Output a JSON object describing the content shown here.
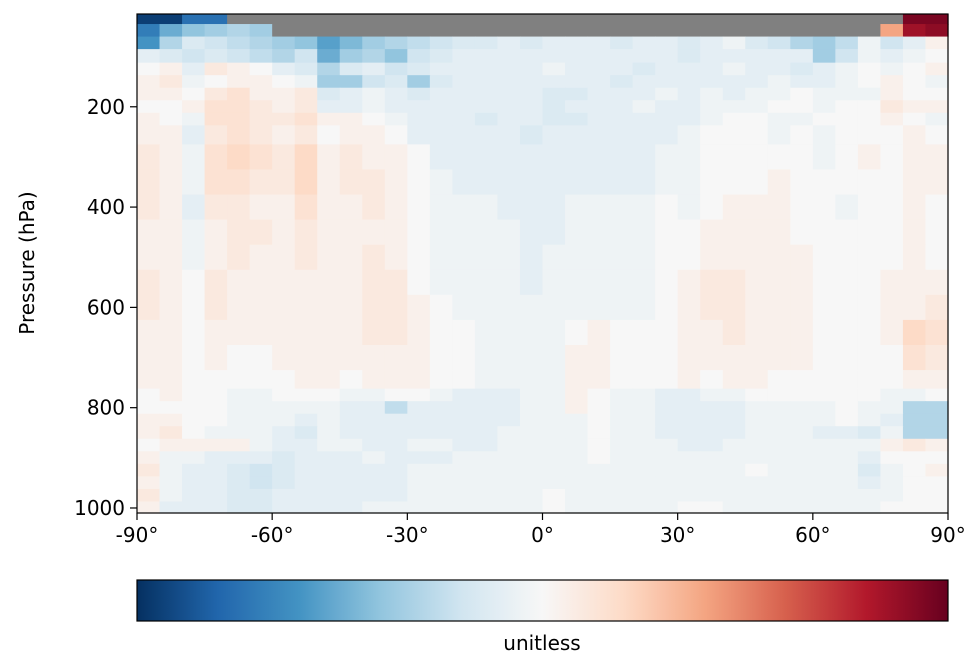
{
  "chart_data": {
    "type": "heatmap",
    "title": "",
    "xlabel": "",
    "ylabel": "Pressure (hPa)",
    "colorbar_label": "unitless",
    "colormap": "RdBu_r",
    "colormap_stops": [
      "#053061",
      "#2166ac",
      "#4393c3",
      "#92c5de",
      "#d1e5f0",
      "#f7f7f7",
      "#fddbc7",
      "#f4a582",
      "#d6604d",
      "#b2182b",
      "#67001f"
    ],
    "missing_color": "#808080",
    "clim": [
      -1,
      1
    ],
    "xlim": [
      -90,
      90
    ],
    "ylim": [
      1010,
      15
    ],
    "x_ticks": [
      -90,
      -60,
      -30,
      0,
      30,
      60,
      90
    ],
    "x_tick_labels": [
      "-90°",
      "-60°",
      "-30°",
      "0°",
      "30°",
      "60°",
      "90°"
    ],
    "y_ticks": [
      200,
      400,
      600,
      800,
      1000
    ],
    "y_tick_labels": [
      "200",
      "400",
      "600",
      "800",
      "1000"
    ],
    "lat_step": 5,
    "lat_start": -90,
    "levels": [
      20,
      50,
      70,
      100,
      125,
      150,
      175,
      200,
      225,
      250,
      300,
      350,
      400,
      450,
      500,
      550,
      600,
      650,
      700,
      750,
      775,
      800,
      825,
      850,
      875,
      900,
      925,
      950,
      975,
      1000
    ],
    "level_bounds": [
      15,
      35,
      60,
      85,
      112,
      137,
      162,
      187,
      212,
      237,
      275,
      325,
      375,
      425,
      475,
      525,
      575,
      625,
      675,
      725,
      762,
      787,
      812,
      837,
      862,
      887,
      912,
      937,
      962,
      987,
      1010
    ],
    "surface_level_by_lat": [
      20,
      20,
      20,
      20,
      35,
      50,
      60,
      60,
      60,
      60,
      60,
      60,
      60,
      60,
      60,
      60,
      60,
      60,
      60,
      60,
      60,
      60,
      60,
      60,
      60,
      60,
      60,
      60,
      60,
      60,
      60,
      60,
      60,
      35,
      20,
      20
    ],
    "values": [
      [
        -0.95,
        -0.95,
        -0.75,
        -0.75,
        -0.45,
        -0.4,
        -0.35,
        -0.55,
        -0.5,
        -0.45,
        -0.25,
        -0.35,
        -0.3,
        -0.1,
        -0.2,
        -0.1,
        0.05,
        -0.2,
        0.1,
        -0.05,
        -0.3,
        -0.1,
        -0.05,
        -0.15,
        0.1,
        0.15,
        0.35,
        0.1,
        -0.05,
        -0.2,
        -0.15,
        -0.1,
        0.3,
        0.95,
        0.95,
        0.95
      ],
      [
        -0.7,
        -0.5,
        -0.4,
        -0.35,
        -0.3,
        -0.35,
        -0.3,
        -0.5,
        -0.45,
        -0.4,
        -0.3,
        -0.2,
        -0.35,
        -0.25,
        -0.2,
        -0.15,
        -0.1,
        -0.2,
        -0.1,
        -0.15,
        -0.2,
        -0.15,
        -0.1,
        -0.15,
        -0.1,
        0.05,
        0.05,
        -0.1,
        -0.15,
        -0.3,
        -0.25,
        -0.2,
        0.1,
        0.4,
        0.85,
        0.9
      ],
      [
        -0.6,
        -0.3,
        -0.15,
        -0.2,
        -0.25,
        -0.3,
        -0.35,
        -0.4,
        -0.55,
        -0.45,
        -0.35,
        -0.3,
        -0.25,
        -0.2,
        -0.15,
        -0.15,
        -0.1,
        -0.15,
        -0.1,
        -0.1,
        -0.1,
        -0.15,
        -0.1,
        -0.1,
        -0.15,
        -0.1,
        -0.05,
        -0.15,
        -0.2,
        -0.3,
        -0.35,
        -0.25,
        -0.05,
        -0.2,
        -0.1,
        0.05
      ],
      [
        -0.1,
        -0.15,
        -0.2,
        -0.15,
        -0.2,
        -0.25,
        -0.3,
        -0.2,
        -0.5,
        -0.35,
        -0.3,
        -0.4,
        -0.2,
        -0.15,
        -0.1,
        -0.1,
        -0.1,
        -0.1,
        -0.1,
        -0.1,
        -0.1,
        -0.1,
        -0.1,
        -0.1,
        -0.15,
        -0.1,
        -0.1,
        -0.1,
        -0.1,
        -0.1,
        -0.35,
        -0.2,
        -0.05,
        -0.1,
        -0.05,
        0
      ],
      [
        0,
        0.05,
        -0.1,
        0.1,
        0.05,
        0,
        -0.1,
        -0.15,
        -0.3,
        -0.15,
        -0.1,
        -0.2,
        -0.15,
        -0.1,
        -0.1,
        -0.1,
        -0.1,
        -0.1,
        -0.05,
        -0.1,
        -0.1,
        -0.1,
        -0.15,
        -0.1,
        -0.1,
        -0.1,
        -0.05,
        -0.1,
        -0.1,
        -0.15,
        -0.1,
        -0.05,
        0,
        -0.05,
        0,
        0.05
      ],
      [
        0.05,
        0.1,
        -0.05,
        0,
        0.05,
        0.05,
        0,
        -0.05,
        -0.35,
        -0.35,
        -0.2,
        -0.15,
        -0.35,
        -0.15,
        -0.1,
        -0.1,
        -0.1,
        -0.1,
        -0.1,
        -0.1,
        -0.1,
        -0.15,
        -0.1,
        -0.1,
        -0.1,
        -0.1,
        -0.1,
        -0.1,
        -0.05,
        -0.1,
        -0.1,
        -0.05,
        0,
        0.05,
        0,
        -0.05
      ],
      [
        0.05,
        0.05,
        0,
        0.1,
        0.15,
        0.05,
        0.05,
        0.1,
        -0.15,
        -0.1,
        -0.05,
        -0.1,
        -0.15,
        -0.1,
        -0.1,
        -0.1,
        -0.1,
        -0.1,
        -0.15,
        -0.15,
        -0.1,
        -0.1,
        -0.1,
        -0.05,
        -0.1,
        -0.05,
        -0.1,
        -0.05,
        -0.05,
        0,
        -0.05,
        -0.05,
        -0.05,
        0.05,
        0,
        0
      ],
      [
        0,
        0,
        0.05,
        0.15,
        0.15,
        0.1,
        0.05,
        0.1,
        -0.1,
        -0.1,
        -0.05,
        -0.1,
        -0.1,
        -0.1,
        -0.1,
        -0.1,
        -0.1,
        -0.1,
        -0.15,
        -0.1,
        -0.1,
        -0.1,
        -0.05,
        -0.1,
        -0.1,
        -0.05,
        -0.05,
        -0.05,
        0,
        0,
        -0.05,
        0,
        0,
        0.1,
        0.05,
        0.05
      ],
      [
        0.05,
        0,
        -0.05,
        0.15,
        0.15,
        0.1,
        0.1,
        0.15,
        0.05,
        0.05,
        0,
        -0.05,
        -0.1,
        -0.1,
        -0.1,
        -0.15,
        -0.1,
        -0.1,
        -0.15,
        -0.15,
        -0.1,
        -0.1,
        -0.1,
        -0.1,
        -0.1,
        -0.05,
        0,
        0,
        -0.05,
        -0.05,
        0,
        0,
        0,
        0.05,
        0,
        -0.05
      ],
      [
        0.05,
        0.05,
        -0.1,
        0.1,
        0.15,
        0.1,
        0.05,
        0.1,
        0,
        0.05,
        0.05,
        0,
        -0.1,
        -0.1,
        -0.1,
        -0.1,
        -0.1,
        -0.15,
        -0.1,
        -0.1,
        -0.1,
        -0.1,
        -0.1,
        -0.1,
        -0.05,
        0,
        0,
        0,
        -0.05,
        0,
        -0.05,
        0,
        0,
        0,
        0.05,
        0
      ],
      [
        0.1,
        0.05,
        -0.05,
        0.15,
        0.2,
        0.15,
        0.1,
        0.2,
        0.05,
        0.1,
        0.05,
        0.05,
        0,
        -0.1,
        -0.1,
        -0.1,
        -0.1,
        -0.1,
        -0.1,
        -0.1,
        -0.1,
        -0.1,
        -0.1,
        -0.05,
        -0.05,
        0,
        0,
        0,
        0,
        0,
        -0.05,
        0,
        0.05,
        0,
        0.05,
        0.05
      ],
      [
        0.1,
        0.05,
        -0.05,
        0.15,
        0.15,
        0.1,
        0.1,
        0.2,
        0.05,
        0.1,
        0.1,
        0.05,
        0,
        -0.05,
        -0.1,
        -0.1,
        -0.1,
        -0.1,
        -0.1,
        -0.1,
        -0.1,
        -0.1,
        -0.1,
        -0.05,
        -0.05,
        0,
        0,
        0,
        0.05,
        0,
        0,
        0,
        0,
        0,
        0.05,
        0.05
      ],
      [
        0.1,
        0.05,
        -0.1,
        0.1,
        0.1,
        0.05,
        0.05,
        0.15,
        0.05,
        0.05,
        0.1,
        0.05,
        0,
        -0.05,
        -0.05,
        -0.05,
        -0.1,
        -0.1,
        -0.1,
        -0.05,
        -0.05,
        -0.05,
        -0.05,
        0,
        -0.05,
        0,
        0.05,
        0.05,
        0.05,
        0,
        0,
        -0.05,
        0,
        0,
        0.05,
        0
      ],
      [
        0.05,
        0.05,
        -0.05,
        0.05,
        0.1,
        0.1,
        0.05,
        0.1,
        0.05,
        0.05,
        0.05,
        0.05,
        0,
        -0.05,
        -0.05,
        -0.05,
        -0.05,
        -0.1,
        -0.1,
        -0.05,
        -0.05,
        -0.05,
        -0.05,
        0,
        0,
        0.05,
        0.05,
        0.05,
        0.05,
        0,
        0,
        0,
        0,
        0,
        0.05,
        0
      ],
      [
        0.05,
        0.05,
        -0.05,
        0.05,
        0.1,
        0.05,
        0.05,
        0.1,
        0.05,
        0.05,
        0.1,
        0.05,
        0,
        -0.05,
        -0.05,
        -0.05,
        -0.05,
        -0.1,
        -0.05,
        -0.05,
        -0.05,
        -0.05,
        -0.05,
        0,
        0,
        0.05,
        0.05,
        0.05,
        0.05,
        0.05,
        0,
        0,
        0,
        0,
        0.05,
        0
      ],
      [
        0.1,
        0.05,
        0,
        0.1,
        0.05,
        0.05,
        0.05,
        0.05,
        0.05,
        0.05,
        0.1,
        0.1,
        0,
        -0.05,
        -0.05,
        -0.05,
        -0.05,
        -0.1,
        -0.05,
        -0.05,
        -0.05,
        -0.05,
        -0.05,
        0,
        0.05,
        0.1,
        0.1,
        0.05,
        0.05,
        0.05,
        0,
        0,
        0,
        0.05,
        0.05,
        0.05
      ],
      [
        0.1,
        0.05,
        0,
        0.1,
        0.05,
        0.05,
        0.05,
        0.05,
        0.05,
        0.05,
        0.1,
        0.1,
        0.05,
        0,
        -0.05,
        -0.05,
        -0.05,
        -0.05,
        -0.05,
        -0.05,
        -0.05,
        -0.05,
        -0.05,
        0,
        0.05,
        0.1,
        0.1,
        0.05,
        0.05,
        0.05,
        0,
        0,
        0,
        0.05,
        0.05,
        0.1
      ],
      [
        0.05,
        0.05,
        0,
        0.05,
        0.05,
        0.05,
        0.05,
        0.05,
        0.05,
        0.05,
        0.1,
        0.1,
        0.05,
        0,
        0,
        -0.05,
        -0.05,
        -0.05,
        -0.05,
        0,
        0.05,
        0,
        0,
        0,
        0.05,
        0.05,
        0.1,
        0.05,
        0.05,
        0.05,
        0,
        0,
        0,
        0.05,
        0.2,
        0.15
      ],
      [
        0.05,
        0.05,
        0,
        0.05,
        0,
        0,
        0.05,
        0.05,
        0.05,
        0.05,
        0.05,
        0.05,
        0.05,
        0,
        0,
        -0.05,
        -0.05,
        -0.05,
        -0.05,
        0.05,
        0.05,
        0,
        0,
        0,
        0.05,
        0.05,
        0.05,
        0.05,
        0.05,
        0.05,
        0,
        0,
        0,
        0,
        0.15,
        0.1
      ],
      [
        0.05,
        0.05,
        0,
        0,
        0,
        0,
        0,
        0.05,
        0.05,
        0,
        0.05,
        0.05,
        0.05,
        0,
        0,
        -0.05,
        -0.05,
        -0.05,
        -0.05,
        0.05,
        0.05,
        0,
        0,
        0,
        0.05,
        0,
        0.05,
        0.05,
        0,
        0,
        0,
        0,
        0,
        0,
        0.05,
        0.05
      ],
      [
        0,
        0.05,
        0,
        0,
        -0.05,
        -0.05,
        0,
        0,
        0,
        -0.05,
        -0.05,
        0,
        0,
        -0.05,
        -0.1,
        -0.1,
        -0.1,
        -0.05,
        -0.05,
        0.05,
        0,
        -0.05,
        -0.05,
        -0.1,
        -0.1,
        -0.05,
        -0.05,
        0,
        0,
        0,
        0,
        0,
        0,
        -0.05,
        -0.05,
        0
      ],
      [
        0,
        0,
        0,
        0,
        -0.05,
        -0.05,
        -0.05,
        -0.05,
        -0.05,
        -0.1,
        -0.1,
        -0.25,
        -0.1,
        -0.1,
        -0.1,
        -0.1,
        -0.1,
        -0.05,
        -0.05,
        0.05,
        0,
        -0.05,
        -0.05,
        -0.1,
        -0.1,
        -0.1,
        -0.1,
        -0.05,
        -0.05,
        -0.05,
        -0.05,
        0,
        -0.05,
        -0.05,
        -0.3,
        -0.3
      ],
      [
        0.05,
        0.05,
        0,
        0,
        -0.05,
        -0.05,
        -0.05,
        -0.1,
        -0.05,
        -0.1,
        -0.1,
        -0.1,
        -0.1,
        -0.1,
        -0.1,
        -0.1,
        -0.1,
        -0.05,
        -0.05,
        -0.05,
        0,
        -0.05,
        -0.05,
        -0.1,
        -0.1,
        -0.1,
        -0.1,
        -0.05,
        -0.05,
        -0.05,
        -0.05,
        0,
        -0.05,
        -0.1,
        -0.3,
        -0.3
      ],
      [
        0.05,
        0.1,
        0,
        -0.05,
        -0.05,
        -0.05,
        -0.1,
        -0.15,
        -0.05,
        -0.1,
        -0.1,
        -0.1,
        -0.1,
        -0.1,
        -0.1,
        -0.1,
        -0.05,
        -0.05,
        -0.05,
        -0.05,
        0,
        -0.05,
        -0.05,
        -0.1,
        -0.1,
        -0.1,
        -0.1,
        -0.05,
        -0.05,
        -0.05,
        -0.1,
        -0.1,
        -0.15,
        -0.05,
        -0.3,
        -0.3
      ],
      [
        0,
        0.05,
        0.05,
        0.05,
        0.05,
        -0.05,
        -0.1,
        -0.1,
        -0.05,
        -0.05,
        -0.1,
        -0.1,
        -0.05,
        -0.05,
        -0.1,
        -0.1,
        -0.05,
        -0.05,
        -0.05,
        -0.05,
        0,
        -0.05,
        -0.05,
        -0.05,
        -0.1,
        -0.1,
        -0.05,
        -0.05,
        -0.05,
        -0.05,
        -0.05,
        -0.05,
        -0.05,
        0.05,
        0.1,
        0.05
      ],
      [
        0.05,
        -0.05,
        -0.05,
        -0.1,
        -0.1,
        -0.1,
        -0.15,
        -0.1,
        -0.1,
        -0.1,
        -0.05,
        -0.1,
        -0.1,
        -0.1,
        -0.05,
        -0.05,
        -0.05,
        -0.05,
        -0.05,
        -0.05,
        0,
        -0.05,
        -0.05,
        -0.05,
        -0.05,
        -0.05,
        -0.05,
        -0.05,
        -0.05,
        -0.05,
        -0.05,
        -0.05,
        -0.1,
        0,
        0,
        0
      ],
      [
        0.1,
        -0.05,
        -0.1,
        -0.1,
        -0.15,
        -0.2,
        -0.15,
        -0.1,
        -0.1,
        -0.1,
        -0.1,
        -0.1,
        -0.05,
        -0.05,
        -0.05,
        -0.05,
        -0.05,
        -0.05,
        -0.05,
        -0.05,
        -0.05,
        -0.05,
        -0.05,
        -0.05,
        -0.05,
        -0.05,
        -0.05,
        0,
        -0.05,
        -0.05,
        -0.05,
        -0.05,
        -0.15,
        -0.05,
        0,
        0.05
      ],
      [
        0.05,
        -0.05,
        -0.1,
        -0.1,
        -0.15,
        -0.2,
        -0.15,
        -0.1,
        -0.1,
        -0.1,
        -0.1,
        -0.1,
        -0.05,
        -0.05,
        -0.05,
        -0.05,
        -0.05,
        -0.05,
        -0.05,
        -0.05,
        -0.05,
        -0.05,
        -0.05,
        -0.05,
        -0.05,
        -0.05,
        -0.05,
        -0.05,
        -0.05,
        -0.05,
        -0.05,
        -0.05,
        -0.1,
        -0.05,
        0,
        0
      ],
      [
        0.1,
        -0.05,
        -0.1,
        -0.1,
        -0.15,
        -0.15,
        -0.1,
        -0.1,
        -0.1,
        -0.1,
        -0.1,
        -0.1,
        -0.05,
        -0.05,
        -0.05,
        -0.05,
        -0.05,
        -0.05,
        0,
        -0.05,
        -0.05,
        -0.05,
        -0.05,
        -0.05,
        -0.05,
        -0.05,
        -0.05,
        -0.05,
        -0.05,
        -0.05,
        -0.05,
        -0.05,
        -0.05,
        -0.05,
        0,
        0
      ],
      [
        0.05,
        -0.1,
        -0.1,
        -0.1,
        -0.15,
        -0.15,
        -0.1,
        -0.1,
        -0.1,
        -0.1,
        -0.05,
        -0.05,
        -0.05,
        -0.05,
        -0.05,
        -0.05,
        -0.05,
        -0.05,
        0,
        -0.05,
        -0.05,
        -0.05,
        -0.05,
        -0.05,
        0,
        0,
        -0.05,
        -0.05,
        -0.05,
        -0.05,
        -0.05,
        -0.05,
        -0.05,
        0,
        0,
        0
      ]
    ]
  }
}
